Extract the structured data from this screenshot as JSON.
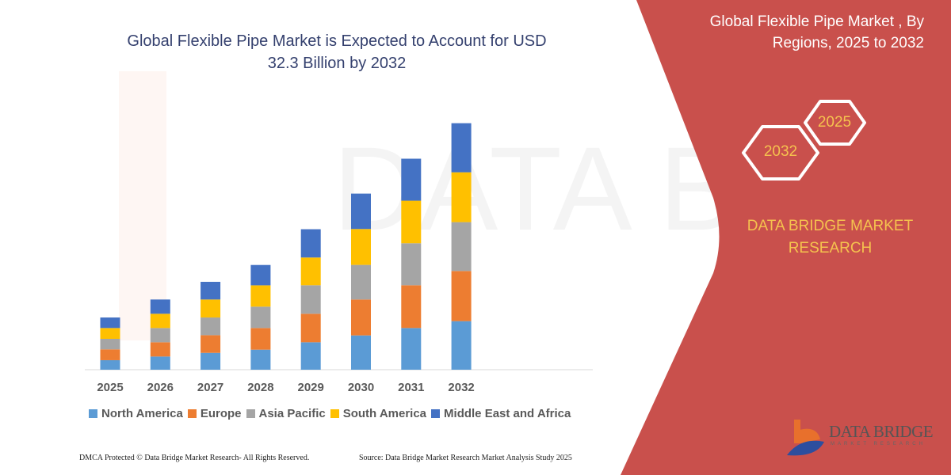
{
  "header": {
    "title": "Global Flexible Pipe Market is Expected to Account for USD 32.3 Billion by 2032",
    "side_title": "Global Flexible Pipe Market , By Regions, 2025 to 2032"
  },
  "side_panel": {
    "hex_start": "2025",
    "hex_end": "2032",
    "brand": "DATA BRIDGE MARKET RESEARCH",
    "logo_text": "DATA BRIDGE",
    "logo_sub": "MARKET RESEARCH",
    "panel_color": "#c9504c",
    "accent_color": "#f5c24e"
  },
  "footer": {
    "left": "DMCA Protected © Data Bridge Market Research- All Rights Reserved.",
    "right": "Source: Data Bridge Market Research Market Analysis Study 2025"
  },
  "chart_data": {
    "type": "bar",
    "stacked": true,
    "title": "Global Flexible Pipe Market is Expected to Account for USD 32.3 Billion by 2032",
    "xlabel": "",
    "ylabel": "",
    "unit": "USD Billion",
    "grid": false,
    "legend_position": "bottom",
    "categories": [
      "2025",
      "2026",
      "2027",
      "2028",
      "2029",
      "2030",
      "2031",
      "2032"
    ],
    "ylim": [
      0,
      32.3
    ],
    "series": [
      {
        "name": "North America",
        "color": "#5b9bd5",
        "values": [
          1.25,
          1.73,
          2.21,
          2.63,
          3.6,
          4.5,
          5.47,
          6.37
        ]
      },
      {
        "name": "Europe",
        "color": "#ed7d31",
        "values": [
          1.42,
          1.87,
          2.32,
          2.84,
          3.74,
          4.71,
          5.61,
          6.58
        ]
      },
      {
        "name": "Asia Pacific",
        "color": "#a5a5a5",
        "values": [
          1.38,
          1.87,
          2.32,
          2.8,
          3.74,
          4.54,
          5.51,
          6.41
        ]
      },
      {
        "name": "South America",
        "color": "#ffc000",
        "values": [
          1.42,
          1.87,
          2.36,
          2.8,
          3.64,
          4.71,
          5.58,
          6.54
        ]
      },
      {
        "name": "Middle East and Africa",
        "color": "#4472c4",
        "values": [
          1.38,
          1.87,
          2.32,
          2.67,
          3.71,
          4.64,
          5.51,
          6.44
        ]
      }
    ]
  }
}
